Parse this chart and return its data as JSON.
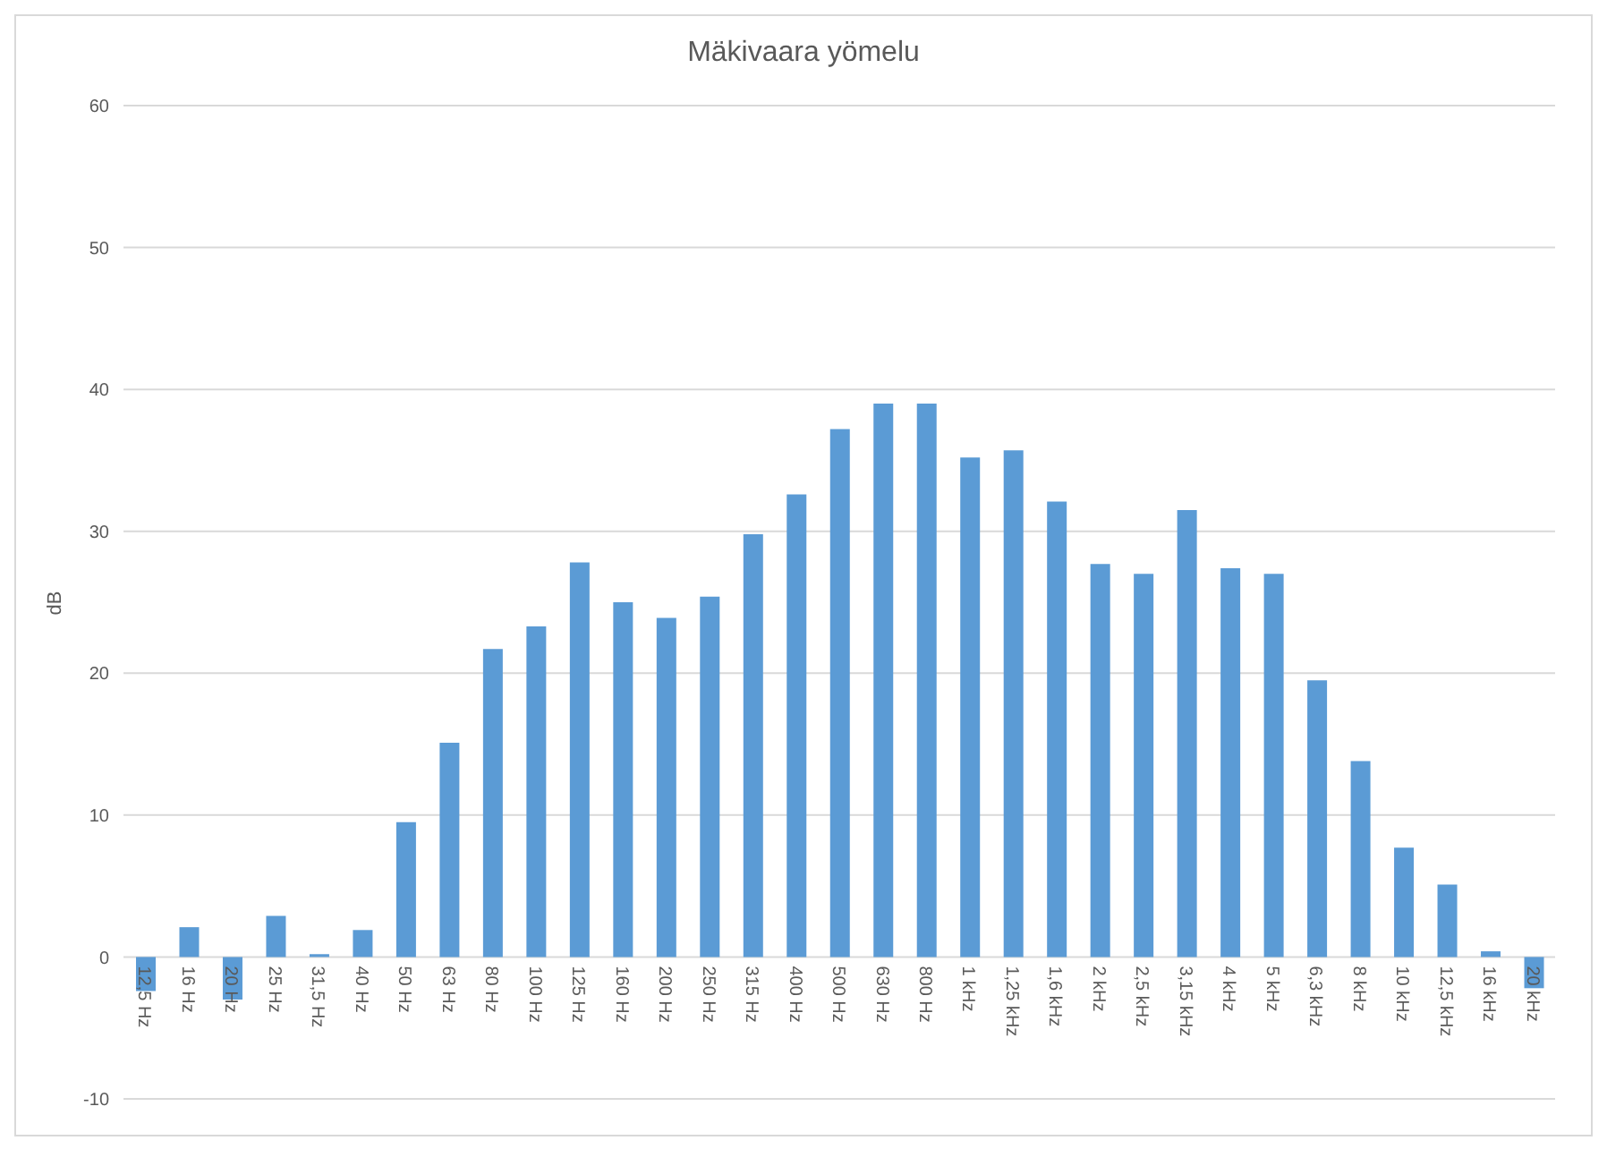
{
  "chart_data": {
    "type": "bar",
    "title": "Mäkivaara yömelu",
    "ylabel": "dB",
    "categories": [
      "12,5 Hz",
      "16 Hz",
      "20 Hz",
      "25 Hz",
      "31,5 Hz",
      "40 Hz",
      "50 Hz",
      "63 Hz",
      "80 Hz",
      "100 Hz",
      "125 Hz",
      "160 Hz",
      "200 Hz",
      "250 Hz",
      "315 Hz",
      "400 Hz",
      "500 Hz",
      "630 Hz",
      "800 Hz",
      "1 kHz",
      "1,25 kHz",
      "1,6 kHz",
      "2 kHz",
      "2,5 kHz",
      "3,15 kHz",
      "4 kHz",
      "5 kHz",
      "6,3 kHz",
      "8 kHz",
      "10 kHz",
      "12,5 kHz",
      "16 kHz",
      "20 kHz"
    ],
    "values": [
      -2.4,
      2.1,
      -3.0,
      2.9,
      0.2,
      1.9,
      9.5,
      15.1,
      21.7,
      23.3,
      27.8,
      25.0,
      23.9,
      25.4,
      29.8,
      32.6,
      37.2,
      39.0,
      39.0,
      35.2,
      35.7,
      32.1,
      27.7,
      27.0,
      31.5,
      27.4,
      27.0,
      19.5,
      13.8,
      7.7,
      5.1,
      0.4,
      -2.2
    ],
    "color": "#5b9bd5",
    "ylim": [
      -10,
      60
    ],
    "yticks": [
      -10,
      0,
      10,
      20,
      30,
      40,
      50,
      60
    ],
    "grid": "y"
  }
}
